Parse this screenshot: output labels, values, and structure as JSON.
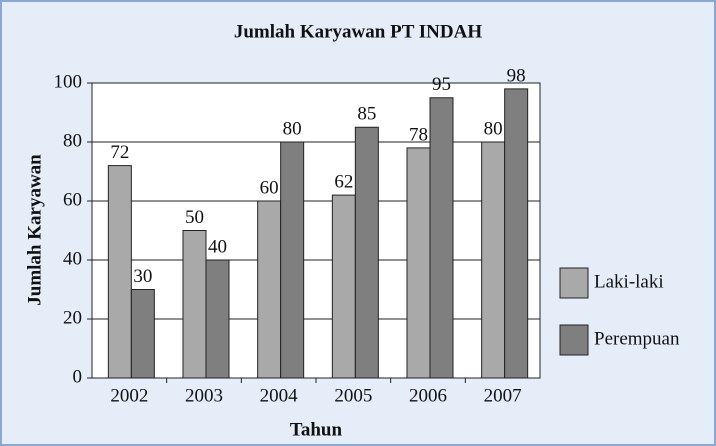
{
  "chart_data": {
    "type": "bar",
    "title": "Jumlah Karyawan PT INDAH",
    "x_label": "Tahun",
    "y_label": "Jumlah Karyawan",
    "categories": [
      "2002",
      "2003",
      "2004",
      "2005",
      "2006",
      "2007"
    ],
    "series": [
      {
        "name": "Laki-laki",
        "color": "#a9a9a9",
        "values": [
          72,
          50,
          60,
          62,
          78,
          80
        ]
      },
      {
        "name": "Perempuan",
        "color": "#7f7f7f",
        "values": [
          30,
          40,
          80,
          85,
          95,
          98
        ]
      }
    ],
    "ylim": [
      0,
      100
    ],
    "yticks": [
      0,
      20,
      40,
      60,
      80,
      100
    ],
    "grid": true,
    "legend": "right"
  }
}
